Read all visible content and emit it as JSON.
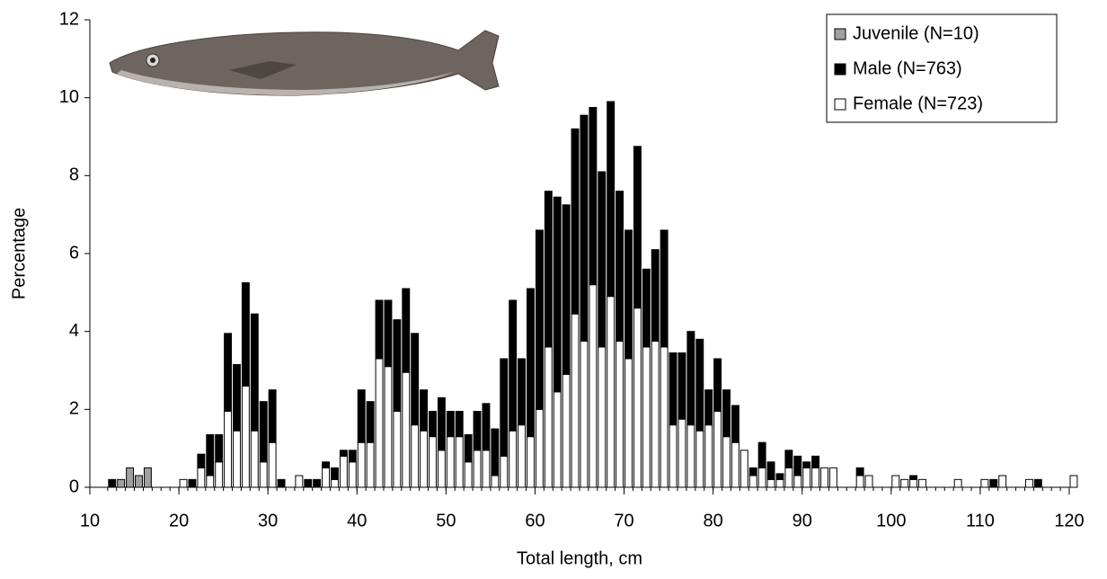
{
  "chart_data": {
    "type": "stacked_bar",
    "x_label": "Total length, cm",
    "y_label": "Percentage",
    "x": [
      12,
      13,
      14,
      15,
      16,
      17,
      18,
      19,
      20,
      21,
      22,
      23,
      24,
      25,
      26,
      27,
      28,
      29,
      30,
      31,
      32,
      33,
      34,
      35,
      36,
      37,
      38,
      39,
      40,
      41,
      42,
      43,
      44,
      45,
      46,
      47,
      48,
      49,
      50,
      51,
      52,
      53,
      54,
      55,
      56,
      57,
      58,
      59,
      60,
      61,
      62,
      63,
      64,
      65,
      66,
      67,
      68,
      69,
      70,
      71,
      72,
      73,
      74,
      75,
      76,
      77,
      78,
      79,
      80,
      81,
      82,
      83,
      84,
      85,
      86,
      87,
      88,
      89,
      90,
      91,
      92,
      93,
      94,
      95,
      96,
      97,
      98,
      99,
      100,
      101,
      102,
      103,
      104,
      105,
      106,
      107,
      108,
      109,
      110,
      111,
      112,
      113,
      114,
      115,
      116,
      117,
      118,
      119,
      120
    ],
    "series": [
      {
        "name": "Juvenile (N=10)",
        "color": "#a0a0a0",
        "values": [
          0,
          0.2,
          0.5,
          0.3,
          0.5,
          0,
          0,
          0,
          0,
          0,
          0,
          0,
          0,
          0,
          0,
          0,
          0,
          0,
          0,
          0,
          0,
          0,
          0,
          0,
          0,
          0,
          0,
          0,
          0,
          0,
          0,
          0,
          0,
          0,
          0,
          0,
          0,
          0,
          0,
          0,
          0,
          0,
          0,
          0,
          0,
          0,
          0,
          0,
          0,
          0,
          0,
          0,
          0,
          0,
          0,
          0,
          0,
          0,
          0,
          0,
          0,
          0,
          0,
          0,
          0,
          0,
          0,
          0,
          0,
          0,
          0,
          0,
          0,
          0,
          0,
          0,
          0,
          0,
          0,
          0,
          0,
          0,
          0,
          0,
          0,
          0,
          0,
          0,
          0,
          0,
          0,
          0,
          0,
          0,
          0,
          0,
          0,
          0,
          0,
          0,
          0,
          0,
          0,
          0,
          0,
          0,
          0,
          0,
          0
        ]
      },
      {
        "name": "Female (N=723)",
        "color": "#ffffff",
        "values": [
          0,
          0,
          0,
          0,
          0,
          0,
          0,
          0,
          0.2,
          0,
          0.5,
          0.3,
          0.65,
          1.95,
          1.45,
          2.6,
          1.45,
          0.65,
          1.15,
          0,
          0,
          0.3,
          0,
          0,
          0.5,
          0.2,
          0.8,
          0.65,
          1.15,
          1.15,
          3.3,
          3.1,
          1.95,
          2.95,
          1.6,
          1.45,
          1.3,
          0.95,
          1.3,
          1.3,
          0.65,
          0.95,
          0.95,
          0.3,
          0.8,
          1.45,
          1.6,
          1.3,
          2.0,
          3.6,
          2.45,
          2.9,
          4.45,
          3.75,
          5.2,
          3.6,
          4.9,
          3.75,
          3.3,
          4.6,
          3.6,
          3.75,
          3.6,
          1.6,
          1.75,
          1.6,
          1.45,
          1.6,
          1.95,
          1.3,
          1.15,
          0.95,
          0.3,
          0.5,
          0.2,
          0.2,
          0.5,
          0.3,
          0.5,
          0.5,
          0.5,
          0.5,
          0,
          0,
          0.3,
          0.3,
          0,
          0,
          0.3,
          0.2,
          0.2,
          0.2,
          0,
          0,
          0,
          0.2,
          0,
          0,
          0.2,
          0,
          0.3,
          0,
          0,
          0.2,
          0,
          0,
          0,
          0,
          0.3
        ]
      },
      {
        "name": "Male (N=763)",
        "color": "#000000",
        "values": [
          0.2,
          0,
          0,
          0,
          0,
          0,
          0,
          0,
          0,
          0.2,
          0.35,
          1.05,
          0.7,
          2.0,
          1.7,
          2.65,
          3.0,
          1.55,
          1.35,
          0.2,
          0,
          0,
          0.2,
          0.2,
          0.15,
          0.3,
          0.15,
          0.3,
          1.35,
          1.05,
          1.5,
          1.7,
          2.35,
          2.15,
          2.35,
          1.05,
          0.65,
          1.35,
          0.65,
          0.65,
          0.7,
          1.0,
          1.2,
          1.2,
          2.5,
          3.35,
          1.7,
          3.8,
          4.6,
          4.0,
          5.0,
          4.35,
          4.75,
          5.8,
          4.55,
          4.5,
          5.0,
          3.85,
          3.3,
          4.15,
          2.0,
          2.35,
          3.0,
          1.85,
          1.7,
          2.4,
          2.35,
          0.9,
          1.35,
          1.2,
          0.95,
          0,
          0.2,
          0.65,
          0.45,
          0.15,
          0.45,
          0.5,
          0.15,
          0.3,
          0,
          0,
          0,
          0,
          0.2,
          0,
          0,
          0,
          0,
          0,
          0.1,
          0,
          0,
          0,
          0,
          0,
          0,
          0,
          0,
          0.2,
          0,
          0,
          0,
          0,
          0.2,
          0,
          0,
          0,
          0
        ]
      }
    ],
    "legend_order": [
      0,
      2,
      1
    ],
    "xlim": [
      10,
      120
    ],
    "xticks": [
      10,
      20,
      30,
      40,
      50,
      60,
      70,
      80,
      90,
      100,
      110,
      120
    ],
    "ylim": [
      0,
      12
    ],
    "yticks": [
      0,
      2,
      4,
      6,
      8,
      10,
      12
    ],
    "legend": "upper right"
  }
}
